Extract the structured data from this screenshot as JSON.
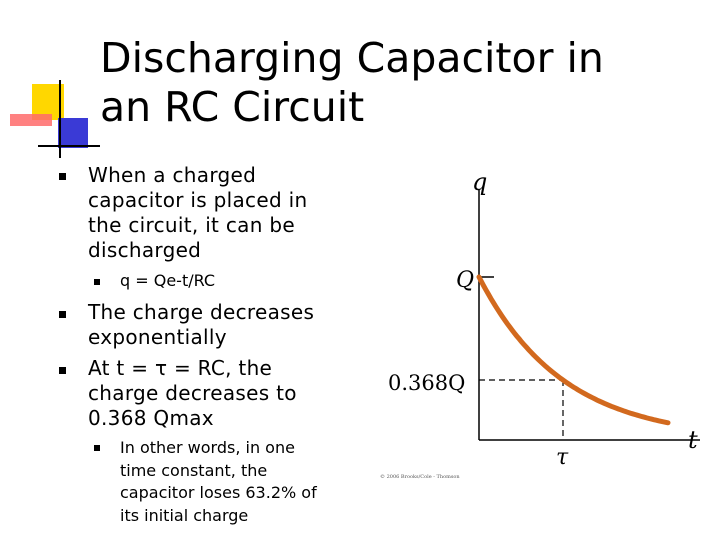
{
  "slide": {
    "title_lines": [
      "Discharging Capacitor in",
      "an RC Circuit"
    ],
    "bullets": [
      {
        "lines": [
          "When a charged",
          "capacitor is placed in",
          "the circuit, it can be",
          "discharged"
        ]
      },
      {
        "lines": [
          "q = Qe-t/RC"
        ],
        "level": 2
      },
      {
        "lines": [
          "The charge decreases",
          "exponentially"
        ]
      },
      {
        "lines": [
          "At t = τ = RC, the",
          "charge decreases to",
          "0.368 Qmax"
        ]
      },
      {
        "lines": [
          "In other words, in one",
          "time constant, the",
          "capacitor loses 63.2% of",
          "its initial charge"
        ],
        "level": 2
      }
    ]
  },
  "graph": {
    "y_axis_label": "q",
    "x_axis_label": "t",
    "y_tick_top": "Q",
    "y_tick_mid": "0.368Q",
    "x_tick": "τ",
    "copyright": "© 2006 Brooks/Cole - Thomson",
    "curve_color": "#d2691e",
    "curve": {
      "q_max": 1.0,
      "tau": 1.0,
      "t_max": 2.25,
      "q_at_tau": 0.368
    }
  },
  "colors": {
    "ornament_yellow": "#ffd700",
    "ornament_red": "#ff6b6b",
    "ornament_blue": "#3a3ad6"
  }
}
